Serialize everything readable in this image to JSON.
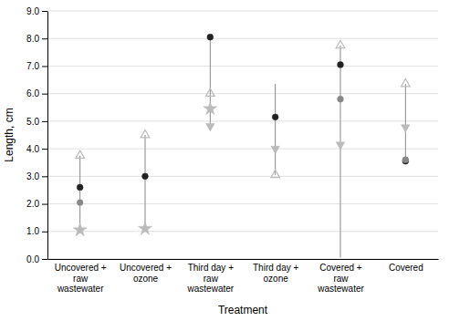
{
  "chart_data": {
    "type": "dot",
    "xlabel": "Treatment",
    "ylabel": "Length, cm",
    "categories": [
      "Uncovered +\nraw\nwastewater",
      "Uncovered +\nozone",
      "Third day +\nraw\nwastewater",
      "Third day +\nozone",
      "Covered +\nraw\nwastewater",
      "Covered"
    ],
    "ylim": [
      0.0,
      9.0
    ],
    "yticks": [
      {
        "value": 0.0,
        "label": "0.0"
      },
      {
        "value": 1.0,
        "label": "1.0"
      },
      {
        "value": 2.0,
        "label": "2.0"
      },
      {
        "value": 3.0,
        "label": "3.0"
      },
      {
        "value": 4.0,
        "label": "4.0"
      },
      {
        "value": 5.0,
        "label": "5.0"
      },
      {
        "value": 6.0,
        "label": "6.0"
      },
      {
        "value": 7.0,
        "label": "7.0"
      },
      {
        "value": 8.0,
        "label": "8.0"
      },
      {
        "value": 9.0,
        "label": "9.0"
      }
    ],
    "grid": true,
    "series": [
      {
        "type": "range",
        "color": "#888888",
        "low": [
          1.05,
          1.1,
          4.8,
          3.05,
          0.05,
          3.55
        ],
        "high": [
          3.75,
          4.5,
          8.05,
          6.35,
          7.75,
          6.35
        ]
      },
      {
        "marker": "circle",
        "color": "#222222",
        "values": [
          2.6,
          3.0,
          8.05,
          5.15,
          7.05,
          3.55
        ]
      },
      {
        "marker": "circle",
        "color": "#888888",
        "values": [
          2.05,
          null,
          null,
          null,
          5.8,
          3.6
        ]
      },
      {
        "marker": "triangle-up-open",
        "color": "#bbbbbb",
        "values": [
          3.75,
          4.5,
          6.0,
          3.05,
          7.75,
          6.35
        ]
      },
      {
        "marker": "star",
        "color": "#bbbbbb",
        "values": [
          1.05,
          1.1,
          5.45,
          null,
          null,
          null
        ]
      },
      {
        "marker": "triangle-down",
        "color": "#bbbbbb",
        "values": [
          null,
          null,
          4.82,
          4.0,
          4.15,
          4.78
        ]
      }
    ]
  }
}
